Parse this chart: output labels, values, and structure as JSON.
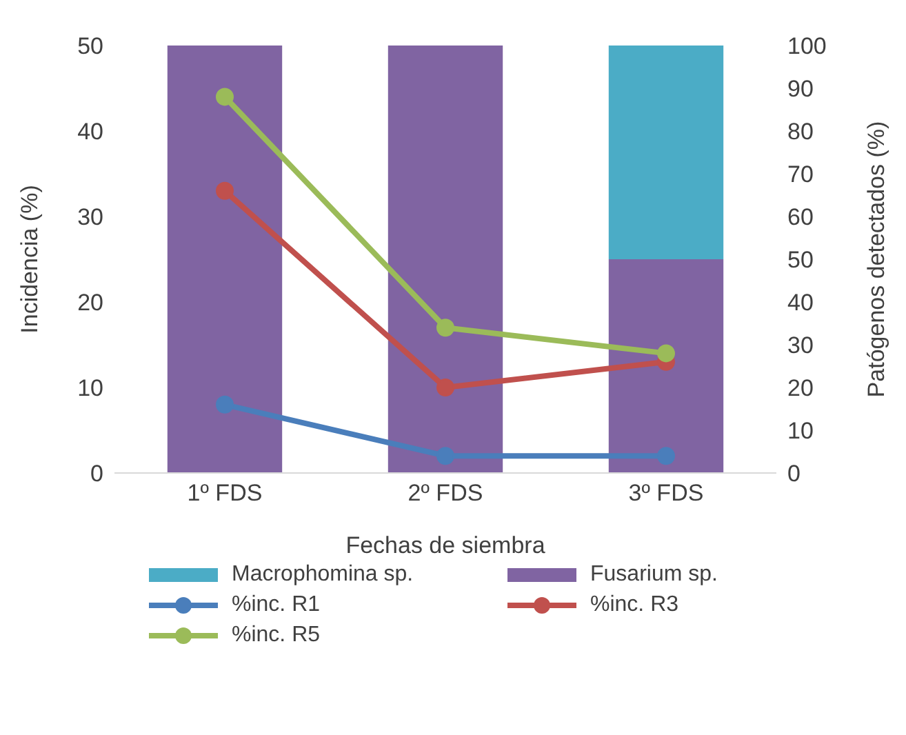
{
  "chart_data": {
    "type": "bar",
    "xlabel": "Fechas de siembra",
    "ylabel": "Incidencia (%)",
    "y2label": "Patógenos detectados (%)",
    "categories": [
      "1º FDS",
      "2º FDS",
      "3º FDS"
    ],
    "stacked": true,
    "grid": false,
    "legend": "bottom",
    "marker": "circle",
    "line_style": "solid",
    "ylim": [
      0,
      50
    ],
    "yticks": [
      0,
      10,
      20,
      30,
      40,
      50
    ],
    "y2lim": [
      0,
      100
    ],
    "y2ticks": [
      0,
      10,
      20,
      30,
      40,
      50,
      60,
      70,
      80,
      90,
      100
    ],
    "series": [
      {
        "name": "Fusarium sp.",
        "color": "#8064a2",
        "values": [
          100,
          100,
          50
        ],
        "axis": "y2"
      },
      {
        "name": "Macrophomina sp.",
        "color": "#4bacc6",
        "values": [
          0,
          0,
          50
        ],
        "axis": "y2"
      },
      {
        "name": "%inc. R1",
        "type": "line",
        "color": "#4a7ebb",
        "values": [
          8,
          2,
          2
        ]
      },
      {
        "name": "%inc. R3",
        "type": "line",
        "color": "#c0504d",
        "values": [
          33,
          10,
          13
        ]
      },
      {
        "name": "%inc. R5",
        "type": "line",
        "color": "#9bbb59",
        "values": [
          44,
          17,
          14
        ]
      }
    ]
  }
}
